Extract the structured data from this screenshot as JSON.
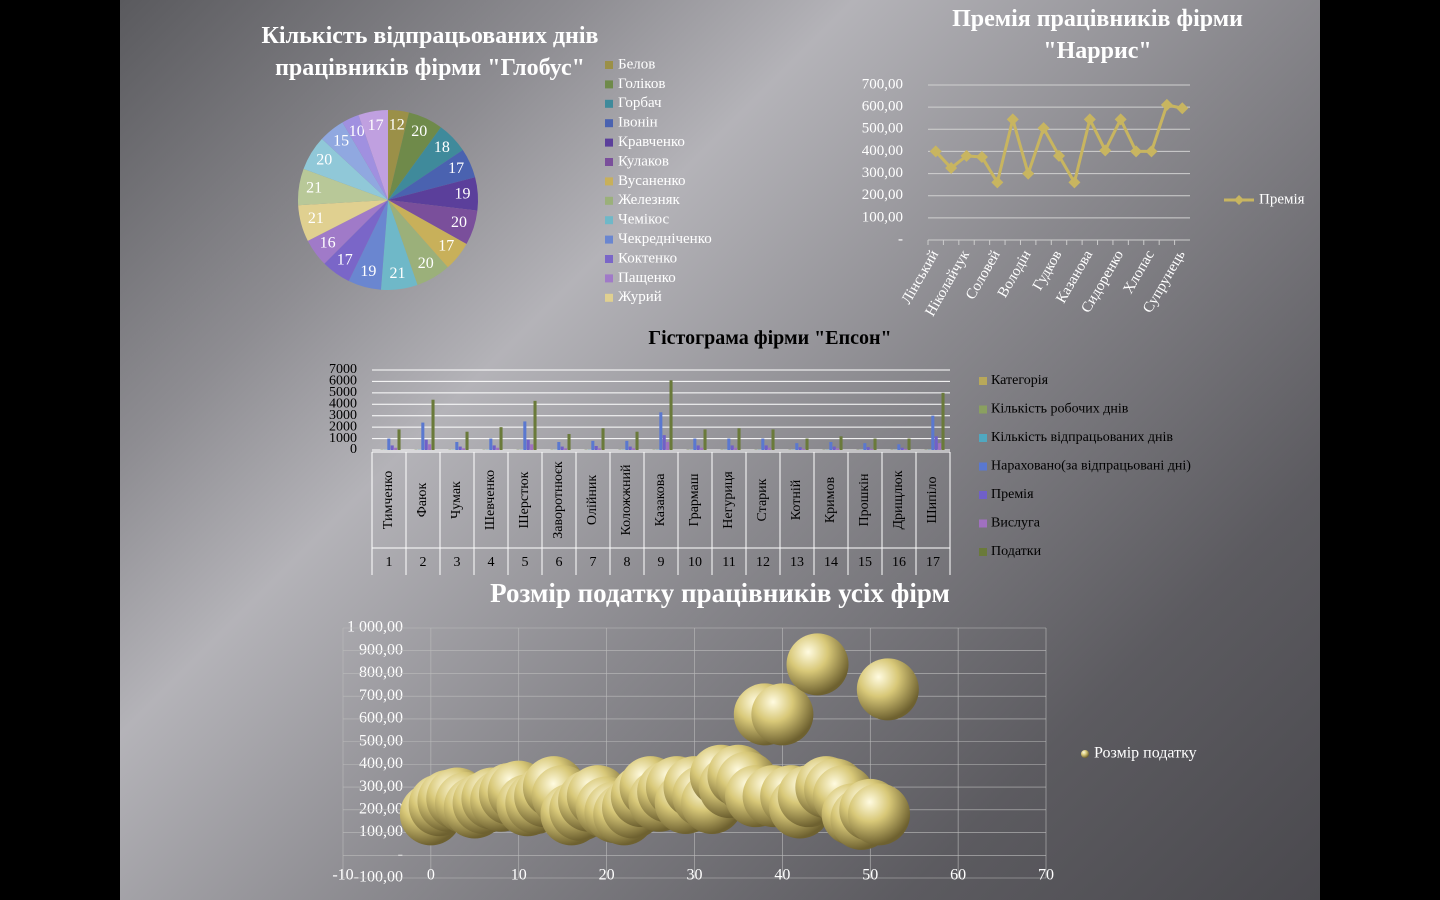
{
  "chart_data": [
    {
      "type": "pie",
      "title": "Кількість відпрацьованих днів працівників фірми \"Глобус\"",
      "categories": [
        "Белов",
        "Голіков",
        "Горбач",
        "Івонін",
        "Кравченко",
        "Кулаков",
        "Вусаненко",
        "Железняк",
        "Чемікос",
        "Чекредніченко",
        "Коктенко",
        "Пащенко",
        "Журий",
        null,
        null,
        null,
        null,
        null
      ],
      "values": [
        12,
        20,
        18,
        17,
        19,
        20,
        17,
        20,
        21,
        19,
        17,
        16,
        21,
        21,
        20,
        15,
        10,
        17
      ],
      "colors": [
        "#9b9048",
        "#6f8a4a",
        "#3f8a9b",
        "#4a62b0",
        "#5b3f9b",
        "#7a4f9b",
        "#c8b05a",
        "#9bb07a",
        "#6fb8c8",
        "#6a86d0",
        "#7a66c8",
        "#a07ac8",
        "#e0d090",
        "#b8c898",
        "#90c8d8",
        "#90a8e0",
        "#a090e0",
        "#c0a0e0"
      ]
    },
    {
      "type": "line",
      "title": "Премія працівників фірми \"Наррис\"",
      "categories": [
        "Лінський",
        null,
        "Ніколайчук",
        null,
        "Соловей",
        null,
        "Володін",
        null,
        "Гудков",
        null,
        "Казанова",
        null,
        "Сидоренко",
        null,
        "Хлопас",
        null,
        "Супрунець"
      ],
      "series": [
        {
          "name": "Премія",
          "color": "#c8b560",
          "values": [
            400,
            325,
            380,
            375,
            260,
            545,
            300,
            505,
            380,
            260,
            545,
            405,
            545,
            400,
            400,
            610,
            595
          ]
        }
      ],
      "ylim": [
        0,
        700
      ],
      "yticks": [
        {
          "value": 0,
          "label": "-"
        },
        {
          "value": 100,
          "label": "100,00"
        },
        {
          "value": 200,
          "label": "200,00"
        },
        {
          "value": 300,
          "label": "300,00"
        },
        {
          "value": 400,
          "label": "400,00"
        },
        {
          "value": 500,
          "label": "500,00"
        },
        {
          "value": 600,
          "label": "600,00"
        },
        {
          "value": 700,
          "label": "700,00"
        }
      ],
      "grid": true,
      "legend": "right"
    },
    {
      "type": "bar",
      "title": "Гістограма фірми \"Епсон\"",
      "categories": [
        "Тимченко",
        "Фаюк",
        "Чумак",
        "Шевченко",
        "Шерстюк",
        "Заворотнюєк",
        "Олійник",
        "Коложжний",
        "Казакова",
        "Грармаш",
        "Негуриця",
        "Старик",
        "Котній",
        "Кримов",
        "Прошкін",
        "Дрищлюк",
        "Шипіло"
      ],
      "category_numbers": [
        1,
        2,
        3,
        4,
        5,
        6,
        7,
        8,
        9,
        10,
        11,
        12,
        13,
        14,
        15,
        16,
        17
      ],
      "series": [
        {
          "name": "Категорія",
          "color": "#b8a85a",
          "values": [
            1,
            2,
            1,
            1,
            2,
            1,
            1,
            1,
            3,
            1,
            1,
            1,
            1,
            1,
            1,
            1,
            3
          ]
        },
        {
          "name": "Кількість робочих днів",
          "color": "#8aa060",
          "values": [
            22,
            22,
            22,
            22,
            22,
            22,
            22,
            22,
            22,
            22,
            22,
            22,
            22,
            22,
            22,
            22,
            22
          ]
        },
        {
          "name": "Кількість відпрацьованих днів",
          "color": "#50a8c0",
          "values": [
            20,
            21,
            18,
            19,
            20,
            17,
            20,
            19,
            21,
            20,
            18,
            19,
            17,
            18,
            16,
            17,
            21
          ]
        },
        {
          "name": "Нараховано(за відпрацьовані дні)",
          "color": "#5a78d0",
          "values": [
            1000,
            2400,
            700,
            1000,
            2500,
            700,
            800,
            800,
            3300,
            1000,
            1000,
            1000,
            600,
            700,
            600,
            500,
            3000
          ]
        },
        {
          "name": "Премія",
          "color": "#7060c8",
          "values": [
            400,
            900,
            300,
            400,
            900,
            300,
            350,
            300,
            1300,
            400,
            400,
            400,
            250,
            300,
            250,
            200,
            1200
          ]
        },
        {
          "name": "Вислуга",
          "color": "#a070c0",
          "values": [
            200,
            500,
            150,
            200,
            500,
            150,
            150,
            150,
            700,
            200,
            200,
            200,
            100,
            150,
            100,
            100,
            600
          ]
        },
        {
          "name": "Податки",
          "color": "#6a7a3a",
          "values": [
            1800,
            4400,
            1600,
            2000,
            4300,
            1400,
            1900,
            1600,
            6100,
            1800,
            1900,
            1800,
            1000,
            1200,
            1000,
            1000,
            5000
          ]
        }
      ],
      "ylim": [
        0,
        7000
      ],
      "yticks": [
        0,
        1000,
        2000,
        3000,
        4000,
        5000,
        6000,
        7000
      ],
      "grid": true,
      "legend": "right"
    },
    {
      "type": "bubble",
      "title": "Розмір податку працівників усіх фірм",
      "series": [
        {
          "name": "Розмір податку",
          "color": "#d8c878",
          "x": [
            0,
            1,
            2,
            3,
            4,
            5,
            6,
            7,
            8,
            9,
            10,
            11,
            12,
            13,
            14,
            15,
            16,
            17,
            18,
            19,
            20,
            21,
            22,
            23,
            24,
            25,
            26,
            27,
            28,
            29,
            30,
            31,
            32,
            33,
            34,
            35,
            36,
            37,
            38,
            39,
            40,
            41,
            42,
            43,
            44,
            45,
            46,
            47,
            48,
            49,
            50,
            51,
            52
          ],
          "values": [
            180,
            220,
            240,
            250,
            230,
            210,
            230,
            250,
            240,
            270,
            280,
            220,
            230,
            260,
            300,
            260,
            180,
            200,
            240,
            260,
            210,
            190,
            180,
            210,
            260,
            300,
            240,
            280,
            300,
            230,
            300,
            260,
            230,
            350,
            300,
            350,
            320,
            260,
            620,
            260,
            620,
            260,
            210,
            260,
            840,
            300,
            290,
            260,
            180,
            160,
            200,
            180,
            730
          ]
        }
      ],
      "xlim": [
        -10,
        70
      ],
      "xticks": [
        -10,
        0,
        10,
        20,
        30,
        40,
        50,
        60,
        70
      ],
      "ylim": [
        -100,
        1000
      ],
      "yticks": [
        {
          "value": -100,
          "label": "-100,00"
        },
        {
          "value": 0,
          "label": "-"
        },
        {
          "value": 100,
          "label": "100,00"
        },
        {
          "value": 200,
          "label": "200,00"
        },
        {
          "value": 300,
          "label": "300,00"
        },
        {
          "value": 400,
          "label": "400,00"
        },
        {
          "value": 500,
          "label": "500,00"
        },
        {
          "value": 600,
          "label": "600,00"
        },
        {
          "value": 700,
          "label": "700,00"
        },
        {
          "value": 800,
          "label": "800,00"
        },
        {
          "value": 900,
          "label": "900,00"
        },
        {
          "value": 1000,
          "label": "1 000,00"
        }
      ],
      "grid": true,
      "legend": "right"
    }
  ]
}
